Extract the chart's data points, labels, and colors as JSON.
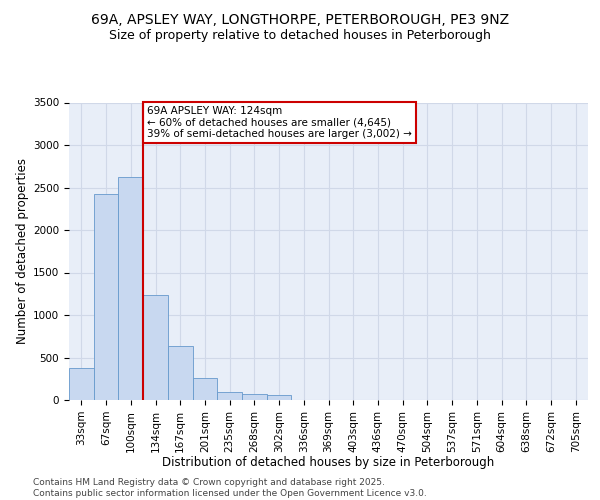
{
  "title_line1": "69A, APSLEY WAY, LONGTHORPE, PETERBOROUGH, PE3 9NZ",
  "title_line2": "Size of property relative to detached houses in Peterborough",
  "xlabel": "Distribution of detached houses by size in Peterborough",
  "ylabel": "Number of detached properties",
  "footer_line1": "Contains HM Land Registry data © Crown copyright and database right 2025.",
  "footer_line2": "Contains public sector information licensed under the Open Government Licence v3.0.",
  "categories": [
    "33sqm",
    "67sqm",
    "100sqm",
    "134sqm",
    "167sqm",
    "201sqm",
    "235sqm",
    "268sqm",
    "302sqm",
    "336sqm",
    "369sqm",
    "403sqm",
    "436sqm",
    "470sqm",
    "504sqm",
    "537sqm",
    "571sqm",
    "604sqm",
    "638sqm",
    "672sqm",
    "705sqm"
  ],
  "values": [
    380,
    2420,
    2620,
    1230,
    630,
    260,
    100,
    70,
    55,
    0,
    0,
    0,
    0,
    0,
    0,
    0,
    0,
    0,
    0,
    0,
    0
  ],
  "bar_color": "#c8d8f0",
  "bar_edge_color": "#6699cc",
  "grid_color": "#d0d8e8",
  "background_color": "#e8eef8",
  "vline_x_index": 2,
  "vline_color": "#cc0000",
  "annotation_text": "69A APSLEY WAY: 124sqm\n← 60% of detached houses are smaller (4,645)\n39% of semi-detached houses are larger (3,002) →",
  "annotation_box_color": "#ffffff",
  "annotation_box_edge": "#cc0000",
  "ylim": [
    0,
    3500
  ],
  "yticks": [
    0,
    500,
    1000,
    1500,
    2000,
    2500,
    3000,
    3500
  ],
  "title_fontsize": 10,
  "subtitle_fontsize": 9,
  "axis_label_fontsize": 8.5,
  "tick_fontsize": 7.5,
  "annotation_fontsize": 7.5,
  "footer_fontsize": 6.5
}
